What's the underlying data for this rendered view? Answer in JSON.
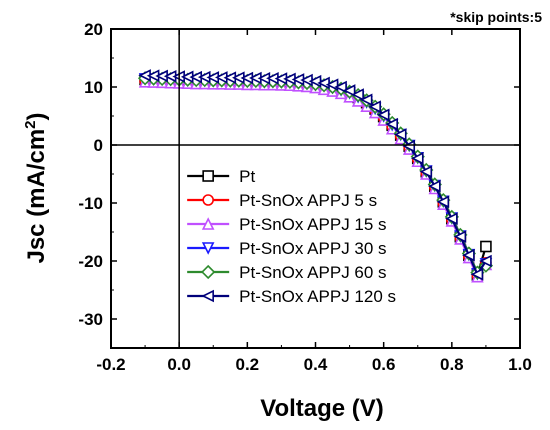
{
  "note": "*skip points:5",
  "chart_data": {
    "type": "line",
    "title": "",
    "xlabel": "Voltage (V)",
    "ylabel_main": "Jsc (mA/cm",
    "ylabel_sup": "2",
    "ylabel_close": ")",
    "xlim": [
      -0.2,
      1.0
    ],
    "ylim": [
      -35,
      20
    ],
    "xticks": [
      -0.2,
      0.0,
      0.2,
      0.4,
      0.6,
      0.8,
      1.0
    ],
    "xtick_labels": [
      "-0.2",
      "0.0",
      "0.2",
      "0.4",
      "0.6",
      "0.8",
      "1.0"
    ],
    "yticks": [
      -30,
      -20,
      -10,
      0,
      10,
      20
    ],
    "ytick_labels": [
      "-30",
      "-20",
      "-10",
      "0",
      "10",
      "20"
    ],
    "grid": false,
    "legend_position": "bottom-left",
    "x": [
      -0.1,
      -0.075,
      -0.05,
      -0.025,
      0.0,
      0.025,
      0.05,
      0.075,
      0.1,
      0.125,
      0.15,
      0.175,
      0.2,
      0.225,
      0.25,
      0.275,
      0.3,
      0.325,
      0.35,
      0.375,
      0.4,
      0.425,
      0.45,
      0.475,
      0.5,
      0.525,
      0.55,
      0.575,
      0.6,
      0.625,
      0.65,
      0.675,
      0.7,
      0.725,
      0.75,
      0.775,
      0.8,
      0.825,
      0.85,
      0.875,
      0.9
    ],
    "series": [
      {
        "name": "Pt",
        "color": "#000000",
        "marker": "square",
        "values": [
          11.3,
          11.25,
          11.2,
          11.15,
          11.1,
          11.05,
          11.0,
          11.0,
          10.95,
          10.95,
          10.9,
          10.9,
          10.85,
          10.85,
          10.8,
          10.8,
          10.75,
          10.7,
          10.6,
          10.5,
          10.3,
          10.1,
          9.8,
          9.4,
          8.9,
          8.2,
          7.3,
          6.2,
          4.9,
          3.4,
          1.7,
          -0.2,
          -2.3,
          -4.6,
          -7.1,
          -9.8,
          -12.7,
          -15.8,
          -19.0,
          -22.4,
          -17.5
        ]
      },
      {
        "name": "Pt-SnOx APPJ 5 s",
        "color": "#ff0000",
        "marker": "circle",
        "values": [
          11.0,
          10.95,
          10.9,
          10.85,
          10.8,
          10.75,
          10.7,
          10.7,
          10.65,
          10.65,
          10.6,
          10.6,
          10.55,
          10.55,
          10.5,
          10.5,
          10.45,
          10.4,
          10.3,
          10.2,
          10.0,
          9.8,
          9.5,
          9.1,
          8.6,
          8.0,
          7.1,
          6.0,
          4.7,
          3.2,
          1.5,
          -0.4,
          -2.5,
          -4.8,
          -7.3,
          -10.0,
          -12.9,
          -16.0,
          -19.2,
          -22.5,
          -20.3
        ]
      },
      {
        "name": "Pt-SnOx APPJ 15 s",
        "color": "#c050ff",
        "marker": "triangle-up",
        "values": [
          10.9,
          10.85,
          10.8,
          10.75,
          10.7,
          10.65,
          10.6,
          10.6,
          10.55,
          10.55,
          10.5,
          10.5,
          10.45,
          10.45,
          10.4,
          10.4,
          10.35,
          10.3,
          10.2,
          10.1,
          9.9,
          9.6,
          9.3,
          8.9,
          8.3,
          7.6,
          6.7,
          5.6,
          4.3,
          2.8,
          1.1,
          -0.7,
          -2.8,
          -5.0,
          -7.5,
          -10.2,
          -13.1,
          -16.2,
          -19.4,
          -22.7,
          -20.6
        ]
      },
      {
        "name": "Pt-SnOx APPJ 30 s",
        "color": "#1a1aff",
        "marker": "triangle-down",
        "values": [
          11.4,
          11.35,
          11.3,
          11.25,
          11.2,
          11.15,
          11.1,
          11.1,
          11.05,
          11.05,
          11.0,
          11.0,
          10.95,
          10.95,
          10.9,
          10.9,
          10.85,
          10.8,
          10.7,
          10.6,
          10.4,
          10.2,
          9.9,
          9.5,
          9.0,
          8.3,
          7.4,
          6.3,
          5.0,
          3.5,
          1.8,
          -0.1,
          -2.2,
          -4.5,
          -7.0,
          -9.7,
          -12.6,
          -15.7,
          -18.9,
          -22.2,
          -20.5
        ]
      },
      {
        "name": "Pt-SnOx APPJ 60 s",
        "color": "#2e8b2e",
        "marker": "diamond",
        "values": [
          11.5,
          11.45,
          11.4,
          11.35,
          11.3,
          11.25,
          11.2,
          11.2,
          11.15,
          11.15,
          11.1,
          11.1,
          11.05,
          11.05,
          11.0,
          11.0,
          10.95,
          10.9,
          10.8,
          10.7,
          10.5,
          10.3,
          10.0,
          9.7,
          9.2,
          8.6,
          7.7,
          6.6,
          5.3,
          3.8,
          2.0,
          0.1,
          -2.0,
          -4.3,
          -6.8,
          -9.5,
          -12.4,
          -15.5,
          -18.7,
          -22.0,
          -20.8
        ]
      },
      {
        "name": "Pt-SnOx APPJ 120 s",
        "color": "#00007a",
        "marker": "triangle-left",
        "values": [
          12.0,
          11.95,
          11.9,
          11.85,
          11.8,
          11.75,
          11.7,
          11.7,
          11.65,
          11.65,
          11.6,
          11.6,
          11.55,
          11.55,
          11.5,
          11.5,
          11.45,
          11.4,
          11.3,
          11.2,
          11.0,
          10.7,
          10.4,
          10.0,
          9.4,
          8.7,
          7.8,
          6.6,
          5.2,
          3.6,
          1.8,
          -0.2,
          -2.3,
          -4.6,
          -7.1,
          -9.8,
          -12.7,
          -15.8,
          -19.0,
          -22.3,
          -20.0
        ]
      }
    ]
  }
}
